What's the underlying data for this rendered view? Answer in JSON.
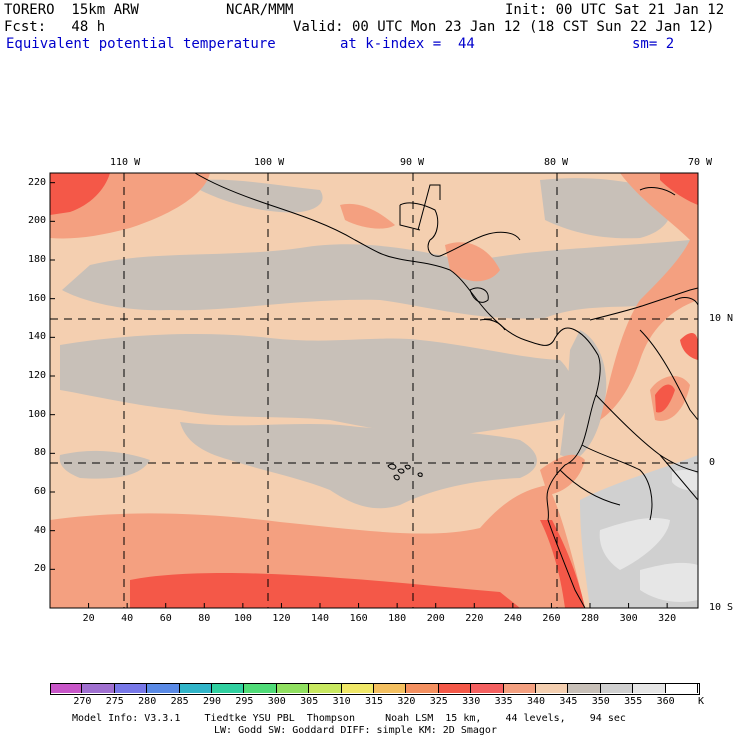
{
  "header": {
    "model": "TORERO  15km ARW",
    "org": "NCAR/MMM",
    "init": "Init: 00 UTC Sat 21 Jan 12",
    "fcst": "Fcst:   48 h",
    "valid": "Valid: 00 UTC Mon 23 Jan 12 (18 CST Sun 22 Jan 12)",
    "field": "Equivalent potential temperature",
    "level": "at k-index =  44",
    "smooth": "sm= 2"
  },
  "map": {
    "top_lon_labels": [
      "110 W",
      "100 W",
      "90 W",
      "80 W",
      "70 W"
    ],
    "right_lat_labels": [
      "10 N",
      "0",
      "10 S"
    ],
    "y_ticks": [
      "220",
      "200",
      "180",
      "160",
      "140",
      "120",
      "100",
      "80",
      "60",
      "40",
      "20"
    ],
    "x_ticks": [
      "20",
      "40",
      "60",
      "80",
      "100",
      "120",
      "140",
      "160",
      "180",
      "200",
      "220",
      "240",
      "260",
      "280",
      "300",
      "320"
    ]
  },
  "colorbar": {
    "labels": [
      "270",
      "275",
      "280",
      "285",
      "290",
      "295",
      "300",
      "305",
      "310",
      "315",
      "320",
      "325",
      "330",
      "335",
      "340",
      "345",
      "350",
      "355",
      "360"
    ],
    "unit": "K",
    "colors": [
      "#c856c8",
      "#a070d0",
      "#7878e8",
      "#5a8ae6",
      "#30b4c8",
      "#30d0a0",
      "#50dc78",
      "#90e060",
      "#c8e860",
      "#f0e868",
      "#f4c060",
      "#f49060",
      "#f45848",
      "#f46060",
      "#f4a080",
      "#f4cfb0",
      "#c8c0b8",
      "#d0d0d0",
      "#e6e6e6",
      "#ffffff"
    ]
  },
  "footer": {
    "line1": "Model Info: V3.3.1    Tiedtke YSU PBL  Thompson     Noah LSM  15 km,    44 levels,    94 sec",
    "line2": "LW: Godd SW: Goddard DIFF: simple KM: 2D Smagor"
  }
}
